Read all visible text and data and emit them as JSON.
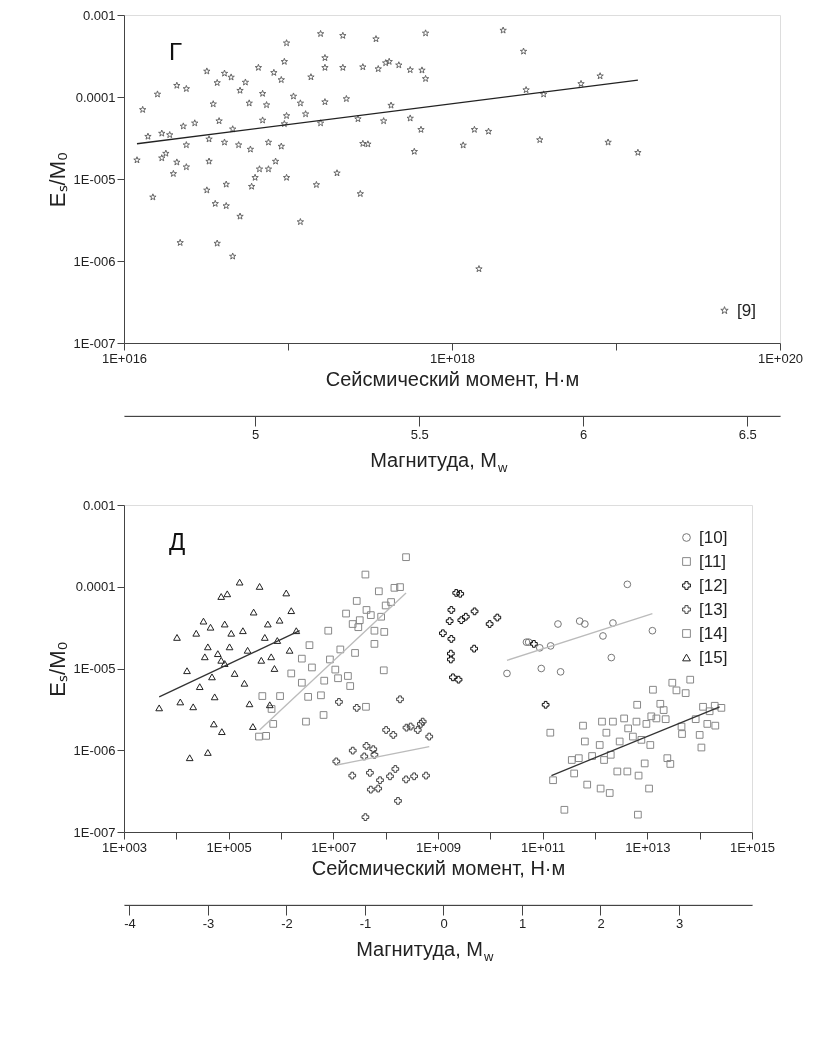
{
  "chart_data": [
    {
      "type": "scatter",
      "xlabel": "Сейсмический момент, Н·м",
      "ylabel": "Eₛ/M₀",
      "x2label": "Магнитуда, M$_{w}$",
      "log": "xy",
      "grid": false,
      "legend": "bottom right",
      "annotations": [
        "Г"
      ],
      "xlim": [
        1e+16,
        1e+20
      ],
      "ylim": [
        1e-07,
        0.001
      ],
      "xticks": [
        {
          "value": 1e+16,
          "label": "1E+016"
        },
        {
          "value": 1e+17,
          "label": null
        },
        {
          "value": 1e+18,
          "label": "1E+018"
        },
        {
          "value": 1e+19,
          "label": null
        },
        {
          "value": 1e+20,
          "label": "1E+020"
        }
      ],
      "yticks": [
        {
          "value": 1e-07,
          "label": "1E-007"
        },
        {
          "value": 1e-06,
          "label": "1E-006"
        },
        {
          "value": 1e-05,
          "label": "1E-005"
        },
        {
          "value": 0.0001,
          "label": "0.0001"
        },
        {
          "value": 0.001,
          "label": "0.001"
        }
      ],
      "x2lim": [
        4.6,
        6.6
      ],
      "x2ticks": [
        5,
        5.5,
        6,
        6.5
      ],
      "series": [
        {
          "name": "[9]",
          "color": "#666666",
          "marker": "star",
          "x": [
            1.2e+16,
            1.3e+16,
            1.4e+16,
            1.5e+16,
            1.6e+16,
            1.7e+16,
            1.7e+16,
            1.8e+16,
            1.9e+16,
            2e+16,
            2.1e+16,
            2.1e+16,
            2.2e+16,
            2.3e+16,
            2.4e+16,
            2.4e+16,
            2.4e+16,
            2.7e+16,
            3.2e+16,
            3.2e+16,
            3.3e+16,
            3.3e+16,
            3.5e+16,
            3.6e+16,
            3.7e+16,
            3.7e+16,
            3.8e+16,
            4.1e+16,
            4.1e+16,
            4.2e+16,
            4.2e+16,
            4.5e+16,
            4.6e+16,
            4.6e+16,
            5e+16,
            5.1e+16,
            5.1e+16,
            5.5e+16,
            5.8e+16,
            5.9e+16,
            6e+16,
            6.3e+16,
            6.6e+16,
            6.7e+16,
            7e+16,
            7e+16,
            7.4e+16,
            7.6e+16,
            7.6e+16,
            8.2e+16,
            8.4e+16,
            9.1e+16,
            9.1e+16,
            9.5e+16,
            9.5e+16,
            9.8e+16,
            9.8e+16,
            9.8e+16,
            1.08e+17,
            1.19e+17,
            1.19e+17,
            1.28e+17,
            1.38e+17,
            1.49e+17,
            1.58e+17,
            1.58e+17,
            1.68e+17,
            1.68e+17,
            1.68e+17,
            1.99e+17,
            2.16e+17,
            2.16e+17,
            2.27e+17,
            2.67e+17,
            2.76e+17,
            2.86e+17,
            2.86e+17,
            3.07e+17,
            3.44e+17,
            3.55e+17,
            3.83e+17,
            3.94e+17,
            4.14e+17,
            4.25e+17,
            4.74e+17,
            5.56e+17,
            5.56e+17,
            5.89e+17,
            6.47e+17,
            6.56e+17,
            6.9e+17,
            6.9e+17,
            1.17e+18,
            1.37e+18,
            1.46e+18,
            1.67e+18,
            2.05e+18,
            2.73e+18,
            2.83e+18,
            3.43e+18,
            3.62e+18,
            6.12e+18,
            8e+18,
            8.95e+18,
            1.36e+19
          ],
          "values": [
            1.7e-05,
            7e-05,
            3.3e-05,
            6e-06,
            0.000108,
            3.6e-05,
            1.8e-05,
            2.05e-05,
            3.45e-05,
            1.16e-05,
            0.000138,
            1.6e-05,
            1.67e-06,
            4.4e-05,
            0.000126,
            2.6e-05,
            1.4e-05,
            4.8e-05,
            0.000206,
            7.3e-06,
            3.06e-05,
            1.64e-05,
            8.2e-05,
            5e-06,
            0.000149,
            1.64e-06,
            5.1e-05,
            0.000194,
            2.8e-05,
            4.7e-06,
            8.6e-06,
            0.000174,
            1.14e-06,
            4.06e-05,
            2.6e-05,
            3.5e-06,
            0.00012,
            0.000151,
            8.4e-05,
            2.3e-05,
            8.1e-06,
            1.04e-05,
            0.000228,
            1.32e-05,
            0.00011,
            5.2e-05,
            8e-05,
            2.8e-05,
            1.32e-05,
            0.000198,
            1.64e-05,
            0.000162,
            2.5e-05,
            0.00027,
            4.7e-05,
            0.000455,
            1.04e-05,
            5.9e-05,
            0.000102,
            8.4e-05,
            3e-06,
            6.2e-05,
            0.000175,
            8.5e-06,
            0.00059,
            4.8e-05,
            0.0003,
            0.000228,
            8.7e-05,
            1.18e-05,
            0.00056,
            0.000228,
            9.5e-05,
            5.4e-05,
            6.6e-06,
            0.000232,
            2.7e-05,
            2.66e-05,
            0.00051,
            0.00022,
            5.1e-05,
            0.00026,
            0.00027,
            7.9e-05,
            0.000245,
            0.000214,
            5.5e-05,
            2.16e-05,
            4e-05,
            0.000212,
            0.000167,
            0.0006,
            2.58e-05,
            4e-05,
            8e-07,
            3.8e-05,
            0.00065,
            0.00036,
            0.000122,
            3e-05,
            0.000108,
            0.000145,
            0.00018,
            2.8e-05,
            2.1e-05
          ]
        },
        {
          "type": "line",
          "color": "#222222",
          "line_style": "solid",
          "x": [
            1.2e+16,
            1.36e+19
          ],
          "values": [
            2.69e-05,
            0.000161
          ]
        }
      ]
    },
    {
      "type": "scatter",
      "xlabel": "Сейсмический момент, Н·м",
      "ylabel": "Eₛ/M₀",
      "x2label": "Магнитуда, M$_{w}$",
      "log": "xy",
      "grid": false,
      "legend": "top right",
      "annotations": [
        "Д"
      ],
      "xlim": [
        1000,
        1000000000000000.0
      ],
      "ylim": [
        1e-07,
        0.001
      ],
      "xticks": [
        {
          "value": 1000.0,
          "label": "1E+003"
        },
        {
          "value": 10000.0,
          "label": null
        },
        {
          "value": 100000.0,
          "label": "1E+005"
        },
        {
          "value": 1000000.0,
          "label": null
        },
        {
          "value": 10000000.0,
          "label": "1E+007"
        },
        {
          "value": 100000000.0,
          "label": null
        },
        {
          "value": 1000000000.0,
          "label": "1E+009"
        },
        {
          "value": 10000000000.0,
          "label": null
        },
        {
          "value": 100000000000.0,
          "label": "1E+011"
        },
        {
          "value": 1000000000000.0,
          "label": null
        },
        {
          "value": 10000000000000.0,
          "label": "1E+013"
        },
        {
          "value": 100000000000000.0,
          "label": null
        },
        {
          "value": 1000000000000000.0,
          "label": "1E+015"
        }
      ],
      "yticks": [
        {
          "value": 1e-07,
          "label": "1E-007"
        },
        {
          "value": 1e-06,
          "label": "1E-006"
        },
        {
          "value": 1e-05,
          "label": "1E-005"
        },
        {
          "value": 0.0001,
          "label": "0.0001"
        },
        {
          "value": 0.001,
          "label": "0.001"
        }
      ],
      "x2lim": [
        -4.07,
        3.93
      ],
      "x2ticks": [
        -4,
        -3,
        -2,
        -1,
        0,
        1,
        2,
        3
      ],
      "series": [
        {
          "name": "[10]",
          "color": "#777777",
          "marker": "circle",
          "x": [
            20800000000.0,
            49000000000.0,
            54000000000.0,
            88000000000.0,
            94000000000.0,
            142000000000.0,
            196000000000.0,
            220000000000.0,
            510000000000.0,
            640000000000.0,
            1420000000000.0,
            2050000000000.0,
            2200000000000.0,
            4150000000000.0,
            12500000000000.0
          ],
          "values": [
            8.7e-06,
            2.1e-05,
            2.1e-05,
            1.79e-05,
            1e-05,
            1.89e-05,
            3.5e-05,
            9.1e-06,
            3.8e-05,
            3.5e-05,
            2.5e-05,
            1.36e-05,
            3.6e-05,
            0.000107,
            2.9e-05
          ]
        },
        {
          "name": "[11]",
          "color": "#888888",
          "marker": "square",
          "x": [
            158000000000.0,
            140000000000.0,
            260000000000.0,
            360000000000.0,
            400000000000.0,
            490000000000.0,
            590000000000.0,
            640000000000.0,
            710000000000.0,
            880000000000.0,
            1230000000000.0,
            1280000000000.0,
            1360000000000.0,
            1490000000000.0,
            1650000000000.0,
            1910000000000.0,
            2000000000000.0,
            2200000000000.0,
            2670000000000.0,
            2960000000000.0,
            3600000000000.0,
            4150000000000.0,
            4300000000000.0,
            5300000000000.0,
            6200000000000.0,
            6400000000000.0,
            6600000000000.0,
            6800000000000.0,
            7700000000000.0,
            8900000000000.0,
            9600000000000.0,
            10800000000000.0,
            11400000000000.0,
            11900000000000.0,
            12800000000000.0,
            14900000000000.0,
            17700000000000.0,
            20500000000000.0,
            22400000000000.0,
            24100000000000.0,
            27500000000000.0,
            30000000000000.0,
            36000000000000.0,
            45000000000000.0,
            46000000000000.0,
            54000000000000.0,
            66000000000000.0,
            84000000000000.0,
            100000000000000.0,
            108000000000000.0,
            116000000000000.0,
            140000000000000.0,
            155000000000000.0,
            199000000000000.0,
            194000000000000.0,
            260000000000000.0
          ],
          "values": [
            4.3e-07,
            1.64e-06,
            1.87e-07,
            7.6e-07,
            5.2e-07,
            8e-07,
            2e-06,
            1.28e-06,
            3.8e-07,
            8.5e-07,
            1.16e-06,
            3.4e-07,
            2.24e-06,
            7.6e-07,
            1.64e-06,
            3e-07,
            8.8e-07,
            2.24e-06,
            5.5e-07,
            1.28e-06,
            2.45e-06,
            5.5e-07,
            1.85e-06,
            1.47e-06,
            2.24e-06,
            3.6e-06,
            1.63e-07,
            4.9e-07,
            1.34e-06,
            6.9e-07,
            2.1e-06,
            3.4e-07,
            1.16e-06,
            2.6e-06,
            5.5e-06,
            2.45e-06,
            3.7e-06,
            3.1e-06,
            2.4e-06,
            8e-07,
            6.8e-07,
            6.7e-06,
            5.4e-06,
            1.95e-06,
            1.58e-06,
            5e-06,
            7.3e-06,
            2.4e-06,
            1.54e-06,
            1.08e-06,
            3.4e-06,
            2.1e-06,
            3e-06,
            2e-06,
            3.5e-06,
            3.3e-06
          ]
        },
        {
          "name": "[12]",
          "color": "#111111",
          "marker": "cross",
          "x": [
            1240000000.0,
            1670000000.0,
            1800000000.0,
            1800000000.0,
            1760000000.0,
            1760000000.0,
            1930000000.0,
            2470000000.0,
            2230000000.0,
            2660000000.0,
            2790000000.0,
            3400000000.0,
            5000000000.0,
            4900000000.0,
            9700000000.0,
            13600000000.0,
            68000000000.0,
            114000000000.0
          ],
          "values": [
            2.7e-05,
            3.8e-05,
            5.2e-05,
            2.3e-05,
            1.52e-05,
            1.29e-05,
            7.8e-06,
            7.3e-06,
            8.4e-05,
            8.2e-05,
            3.9e-05,
            4.3e-05,
            5e-05,
            1.75e-05,
            3.5e-05,
            4.2e-05,
            2e-05,
            3.6e-06
          ]
        },
        {
          "name": "[13]",
          "color": "#444444",
          "marker": "cross",
          "x": [
            11400000.0,
            12800000.0,
            23000000.0,
            23500000.0,
            28000000.0,
            39000000.0,
            41000000.0,
            43000000.0,
            50000000.0,
            52000000.0,
            58000000.0,
            61000000.0,
            72000000.0,
            78000000.0,
            102000000.0,
            121000000.0,
            140000000.0,
            153000000.0,
            172000000.0,
            188000000.0,
            245000000.0,
            250000000.0,
            300000000.0,
            350000000.0,
            410000000.0,
            470000000.0,
            510000000.0,
            590000000.0,
            680000000.0
          ],
          "values": [
            7.3e-07,
            3.9e-06,
            4.9e-07,
            9.9e-07,
            3.3e-06,
            8.4e-07,
            1.52e-07,
            1.13e-06,
            5.3e-07,
            3.3e-07,
            1.03e-06,
            8.8e-07,
            3.4e-07,
            4.3e-07,
            1.77e-06,
            4.8e-07,
            1.54e-06,
            5.9e-07,
            2.4e-07,
            4.2e-06,
            4.4e-07,
            1.89e-06,
            1.95e-06,
            4.8e-07,
            1.77e-06,
            2.1e-06,
            2.24e-06,
            4.9e-07,
            1.47e-06
          ]
        },
        {
          "name": "[14]",
          "color": "#888888",
          "marker": "square",
          "x": [
            380000.0,
            520000.0,
            440000.0,
            710000.0,
            660000.0,
            960000.0,
            1570000.0,
            2500000.0,
            2500000.0,
            3000000.0,
            3300000.0,
            3500000.0,
            3900000.0,
            5800000.0,
            6500000.0,
            6700000.0,
            8000000.0,
            8600000.0,
            10900000.0,
            12300000.0,
            13600000.0,
            17500000.0,
            19000000.0,
            21000000.0,
            23400000.0,
            26000000.0,
            28000000.0,
            30000000.0,
            32000000.0,
            41000000.0,
            42000000.0,
            43000000.0,
            52000000.0,
            61000000.0,
            61000000.0,
            74000000.0,
            82000000.0,
            92000000.0,
            94000000.0,
            100000000.0,
            127000000.0,
            147000000.0,
            188000000.0,
            245000000.0
          ],
          "values": [
            1.47e-06,
            1.5e-06,
            4.6e-06,
            2.1e-06,
            3.2e-06,
            4.6e-06,
            8.7e-06,
            1.32e-05,
            6.7e-06,
            2.24e-06,
            4.5e-06,
            1.93e-05,
            1.03e-05,
            4.7e-06,
            2.7e-06,
            7.1e-06,
            2.9e-05,
            1.29e-05,
            9.7e-06,
            7.6e-06,
            1.71e-05,
            4.7e-05,
            8.1e-06,
            6.1e-06,
            3.5e-05,
            1.55e-05,
            6.7e-05,
            3.2e-05,
            3.9e-05,
            0.000141,
            3.4e-06,
            5.2e-05,
            4.5e-05,
            2.9e-05,
            2e-05,
            8.8e-05,
            4.3e-05,
            9.5e-06,
            2.8e-05,
            5.9e-05,
            6.5e-05,
            9.7e-05,
            9.9e-05,
            0.00023
          ]
        },
        {
          "name": "[15]",
          "color": "#222222",
          "marker": "triangle",
          "x": [
            4700.0,
            10300.0,
            11900.0,
            16000.0,
            18000.0,
            21000.0,
            24000.0,
            28000.0,
            33000.0,
            35000.0,
            40000.0,
            40000.0,
            45000.0,
            48000.0,
            52000.0,
            54000.0,
            62000.0,
            72000.0,
            72000.0,
            74000.0,
            84000.0,
            84000.0,
            94000.0,
            104000.0,
            112000.0,
            130000.0,
            162000.0,
            187000.0,
            200000.0,
            230000.0,
            250000.0,
            290000.0,
            300000.0,
            390000.0,
            420000.0,
            490000.0,
            560000.0,
            610000.0,
            650000.0,
            750000.0,
            850000.0,
            940000.0,
            1260000.0,
            1460000.0,
            1570000.0,
            1960000.0
          ],
          "values": [
            3.3e-06,
            2.4e-05,
            3.9e-06,
            9.4e-06,
            8.1e-07,
            3.4e-06,
            2.7e-05,
            6e-06,
            3.8e-05,
            1.39e-05,
            9.4e-07,
            1.84e-05,
            3.2e-05,
            7.9e-06,
            2.1e-06,
            4.5e-06,
            1.52e-05,
            7.6e-05,
            1.26e-05,
            1.69e-06,
            3.5e-05,
            1.15e-05,
            8.2e-05,
            1.84e-05,
            2.7e-05,
            8.7e-06,
            0.000114,
            2.9e-05,
            6.6e-06,
            1.67e-05,
            3.7e-06,
            1.95e-06,
            4.9e-05,
            0.000101,
            1.26e-05,
            2.4e-05,
            3.5e-05,
            3.6e-06,
            1.39e-05,
            1e-05,
            2.2e-05,
            3.9e-05,
            8.4e-05,
            1.67e-05,
            5.1e-05,
            2.9e-05
          ]
        },
        {
          "type": "line",
          "color": "#bbbbbb",
          "line_style": "solid",
          "x": [
            20800000000.0,
            12500000000000.0
          ],
          "values": [
            1.26e-05,
            4.7e-05
          ]
        },
        {
          "type": "line",
          "color": "#333333",
          "line_style": "solid",
          "x": [
            147000000000.0,
            241000000000000.0
          ],
          "values": [
            4.9e-07,
            3.4e-06
          ]
        },
        {
          "type": "line",
          "color": "#bbbbbb",
          "line_style": "solid",
          "x": [
            11600000.0,
            680000000.0
          ],
          "values": [
            6.6e-07,
            1.11e-06
          ]
        },
        {
          "type": "line",
          "color": "#bbbbbb",
          "line_style": "solid",
          "x": [
            390000.0,
            245000000.0
          ],
          "values": [
            1.77e-06,
            8.4e-05
          ]
        },
        {
          "type": "line",
          "color": "#333333",
          "line_style": "solid",
          "x": [
            4700.0,
            2270000.0
          ],
          "values": [
            4.5e-06,
            2.9e-05
          ]
        }
      ]
    }
  ]
}
